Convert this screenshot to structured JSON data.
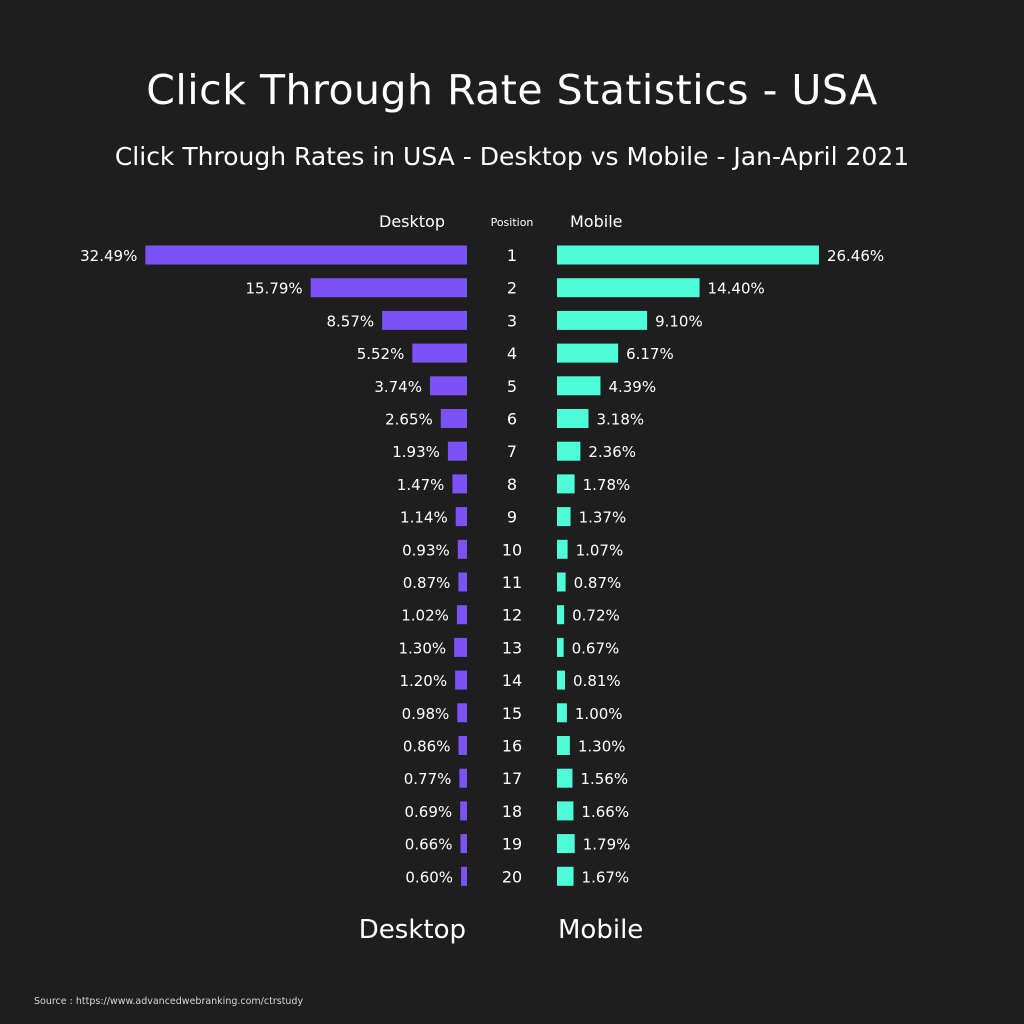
{
  "title": "Click Through Rate Statistics - USA",
  "subtitle": "Click Through Rates in USA - Desktop vs Mobile - Jan-April 2021",
  "source": "Source : https://www.advancedwebranking.com/ctrstudy",
  "colors": {
    "background": "#1f1e1f",
    "desktop": "#7b52f5",
    "mobile": "#4dfcd8",
    "text": "#ffffff"
  },
  "chart_data": {
    "type": "bar",
    "orientation": "horizontal-butterfly",
    "value_suffix": "%",
    "header_labels": {
      "left": "Desktop",
      "center": "Position",
      "right": "Mobile"
    },
    "footer_labels": {
      "left": "Desktop",
      "right": "Mobile"
    },
    "categories": [
      "1",
      "2",
      "3",
      "4",
      "5",
      "6",
      "7",
      "8",
      "9",
      "10",
      "11",
      "12",
      "13",
      "14",
      "15",
      "16",
      "17",
      "18",
      "19",
      "20"
    ],
    "series": [
      {
        "name": "Desktop",
        "values": [
          32.49,
          15.79,
          8.57,
          5.52,
          3.74,
          2.65,
          1.93,
          1.47,
          1.14,
          0.93,
          0.87,
          1.02,
          1.3,
          1.2,
          0.98,
          0.86,
          0.77,
          0.69,
          0.66,
          0.6
        ],
        "labels": [
          "32.49%",
          "15.79%",
          "8.57%",
          "5.52%",
          "3.74%",
          "2.65%",
          "1.93%",
          "1.47%",
          "1.14%",
          "0.93%",
          "0.87%",
          "1.02%",
          "1.30%",
          "1.20%",
          "0.98%",
          "0.86%",
          "0.77%",
          "0.69%",
          "0.66%",
          "0.60%"
        ]
      },
      {
        "name": "Mobile",
        "values": [
          26.46,
          14.4,
          9.1,
          6.17,
          4.39,
          3.18,
          2.36,
          1.78,
          1.37,
          1.07,
          0.87,
          0.72,
          0.67,
          0.81,
          1.0,
          1.3,
          1.56,
          1.66,
          1.79,
          1.67
        ],
        "labels": [
          "26.46%",
          "14.40%",
          "9.10%",
          "6.17%",
          "4.39%",
          "3.18%",
          "2.36%",
          "1.78%",
          "1.37%",
          "1.07%",
          "0.87%",
          "0.72%",
          "0.67%",
          "0.81%",
          "1.00%",
          "1.30%",
          "1.56%",
          "1.66%",
          "1.79%",
          "1.67%"
        ]
      }
    ]
  }
}
